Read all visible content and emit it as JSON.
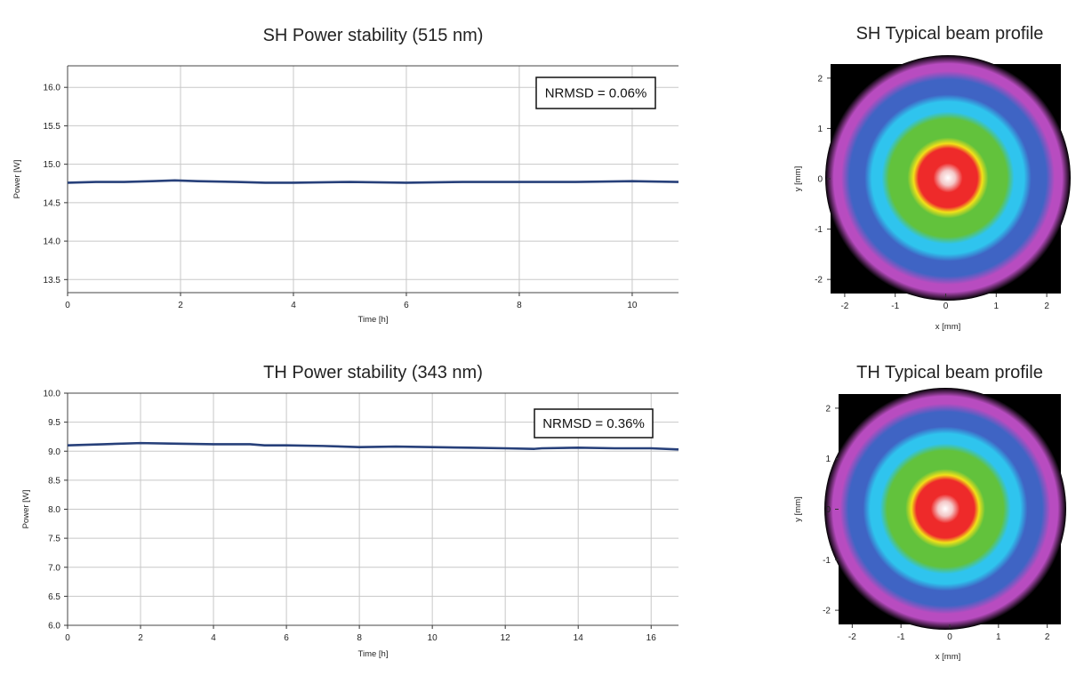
{
  "chart_data": [
    {
      "type": "line",
      "title": "SH Power stability (515 nm)",
      "xlabel": "Time [h]",
      "ylabel": "Power [W]",
      "xlim": [
        0,
        10.82
      ],
      "ylim": [
        13.33,
        16.28
      ],
      "xticks": [
        0,
        2,
        4,
        6,
        8,
        10
      ],
      "yticks": [
        "13.5",
        "14.0",
        "14.5",
        "15.0",
        "15.5",
        "16.0"
      ],
      "grid": true,
      "annotation": "NRMSD = 0.06%",
      "line_color": "#27407a",
      "series": [
        {
          "x": [
            0,
            0.5,
            1,
            1.5,
            1.9,
            2.3,
            3,
            3.5,
            4,
            5,
            6,
            7,
            8,
            9,
            10,
            10.82
          ],
          "y": [
            14.76,
            14.77,
            14.77,
            14.78,
            14.79,
            14.78,
            14.77,
            14.76,
            14.76,
            14.77,
            14.76,
            14.77,
            14.77,
            14.77,
            14.78,
            14.77
          ]
        }
      ]
    },
    {
      "type": "line",
      "title": "TH Power stability (343 nm)",
      "xlabel": "Time [h]",
      "ylabel": "Power [W]",
      "xlim": [
        0,
        16.75
      ],
      "ylim": [
        6.0,
        10.0
      ],
      "xticks": [
        0,
        2,
        4,
        6,
        8,
        10,
        12,
        14,
        16
      ],
      "yticks": [
        "6.0",
        "6.5",
        "7.0",
        "7.5",
        "8.0",
        "8.5",
        "9.0",
        "9.5",
        "10.0"
      ],
      "grid": true,
      "annotation": "NRMSD = 0.36%",
      "line_color": "#27407a",
      "series": [
        {
          "x": [
            0,
            1,
            2,
            3,
            4,
            5,
            5.4,
            6,
            7,
            8,
            9,
            10,
            11,
            12,
            12.8,
            13,
            14,
            15,
            16,
            16.75
          ],
          "y": [
            9.1,
            9.12,
            9.14,
            9.13,
            9.12,
            9.12,
            9.1,
            9.1,
            9.09,
            9.07,
            9.08,
            9.07,
            9.06,
            9.05,
            9.04,
            9.05,
            9.06,
            9.05,
            9.05,
            9.03
          ]
        }
      ]
    },
    {
      "type": "heatmap",
      "title": "SH Typical beam profile",
      "xlabel": "x [mm]",
      "ylabel": "y [mm]",
      "xlim": [
        -2.28,
        2.28
      ],
      "ylim": [
        -2.28,
        2.28
      ],
      "xticks": [
        "-2",
        "-1",
        "0",
        "1",
        "2"
      ],
      "yticks": [
        "-2",
        "-1",
        "0",
        "1",
        "2"
      ],
      "colormap": [
        "#ffffff",
        "#ee2a2a",
        "#f2e019",
        "#62c23c",
        "#2fc4ee",
        "#3f64c4",
        "#b84cc0",
        "#000000"
      ]
    },
    {
      "type": "heatmap",
      "title": "TH Typical beam profile",
      "xlabel": "x [mm]",
      "ylabel": "y [mm]",
      "xlim": [
        -2.28,
        2.28
      ],
      "ylim": [
        -2.28,
        2.28
      ],
      "xticks": [
        "-2",
        "-1",
        "0",
        "1",
        "2"
      ],
      "yticks": [
        "-2",
        "-1",
        "0",
        "1",
        "2"
      ],
      "colormap": [
        "#ffffff",
        "#ee2a2a",
        "#f2e019",
        "#62c23c",
        "#2fc4ee",
        "#3f64c4",
        "#b84cc0",
        "#000000"
      ]
    }
  ]
}
